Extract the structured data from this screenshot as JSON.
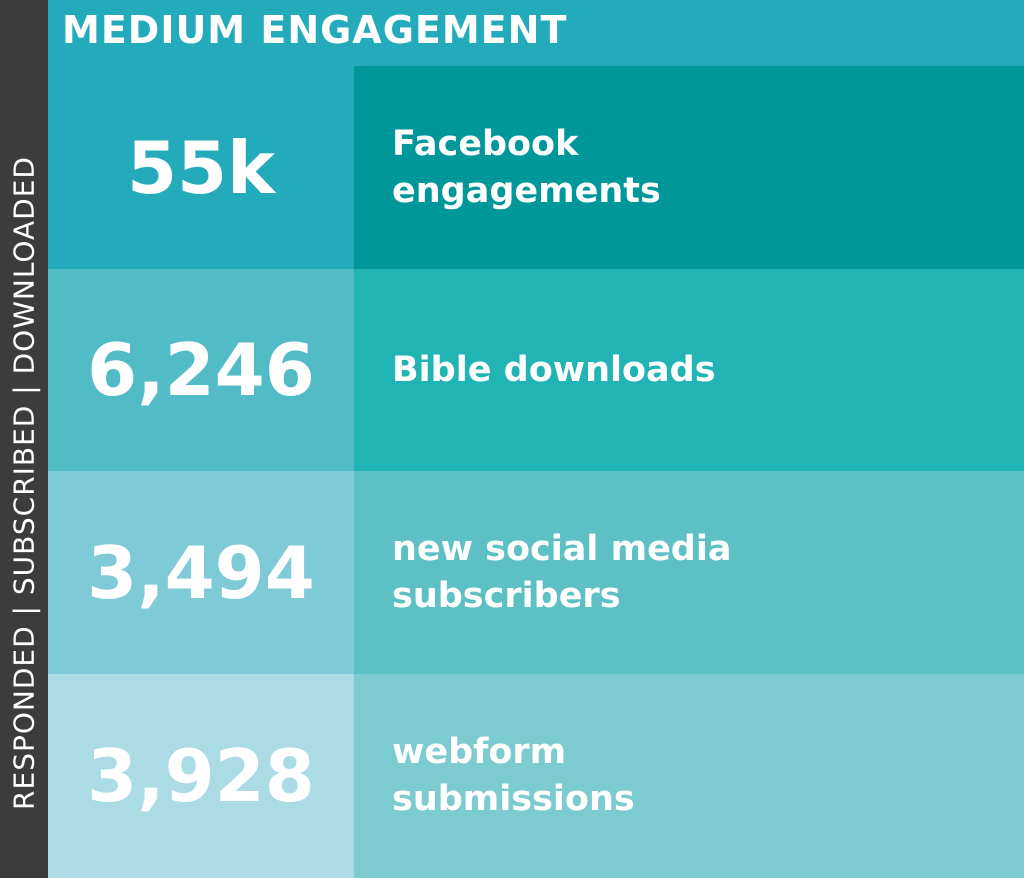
{
  "side_label": "RESPONDED | SUBSCRIBED | DOWNLOADED",
  "header": {
    "title": "MEDIUM ENGAGEMENT"
  },
  "rows": [
    {
      "value": "55k",
      "label": "Facebook engagements",
      "value_color": "#23abbb",
      "label_color": "#00979b"
    },
    {
      "value": "6,246",
      "label": "Bible downloads",
      "value_color": "#52bcc6",
      "label_color": "#20b4b5"
    },
    {
      "value": "3,494",
      "label": "new social media subscribers",
      "value_color": "#7ecad6",
      "label_color": "#5cc0c4"
    },
    {
      "value": "3,928",
      "label": "webform submissions",
      "value_color": "#abdbe5",
      "label_color": "#7ccbd0"
    }
  ],
  "colors": {
    "side_bar": "#3c3c3c",
    "header": "#23abbb",
    "text": "#ffffff"
  }
}
